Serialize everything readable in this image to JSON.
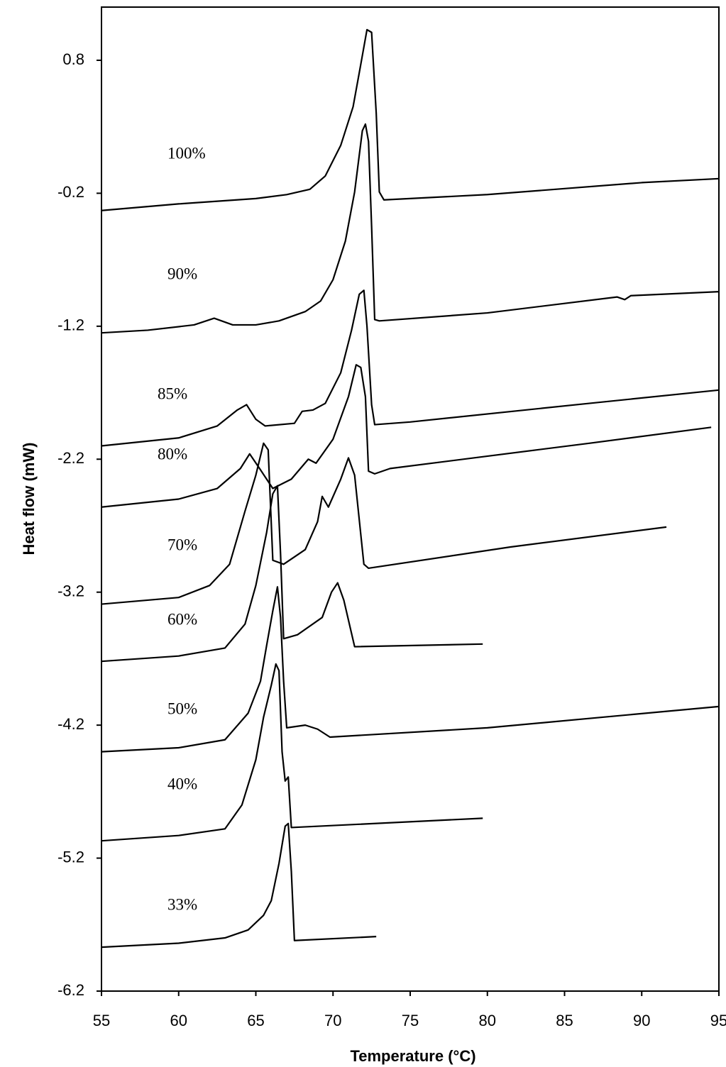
{
  "chart_data": {
    "type": "line",
    "xlabel": "Temperature (°C)",
    "ylabel": "Heat flow (mW)",
    "xlim": [
      55,
      95
    ],
    "xticks": [
      55,
      60,
      65,
      70,
      75,
      80,
      85,
      90,
      95
    ],
    "ylim": [
      -6.2,
      1.2
    ],
    "yticks": [
      0.8,
      -0.2,
      -1.2,
      -2.2,
      -3.2,
      -4.2,
      -5.2,
      -6.2
    ],
    "grid": false,
    "series": [
      {
        "name": "100%",
        "color": "#000000",
        "x": [
          55,
          60,
          65,
          67,
          68.5,
          69.5,
          70.5,
          71.3,
          71.8,
          72.2,
          72.5,
          72.8,
          73.0,
          73.3,
          80,
          90,
          95
        ],
        "values": [
          -0.33,
          -0.28,
          -0.24,
          -0.21,
          -0.17,
          -0.07,
          0.16,
          0.45,
          0.77,
          1.03,
          1.01,
          0.4,
          -0.19,
          -0.25,
          -0.21,
          -0.12,
          -0.09
        ]
      },
      {
        "name": "90%",
        "color": "#000000",
        "x": [
          55,
          58,
          61,
          62.3,
          63.5,
          65,
          66.5,
          68.2,
          69.2,
          70,
          70.8,
          71.4,
          71.9,
          72.1,
          72.3,
          72.5,
          72.7,
          73,
          80,
          88.4,
          88.9,
          89.3,
          95
        ],
        "values": [
          -1.25,
          -1.23,
          -1.19,
          -1.14,
          -1.19,
          -1.19,
          -1.16,
          -1.09,
          -1.01,
          -0.85,
          -0.56,
          -0.19,
          0.27,
          0.32,
          0.19,
          -0.45,
          -1.15,
          -1.16,
          -1.1,
          -0.98,
          -1.0,
          -0.97,
          -0.94
        ]
      },
      {
        "name": "85%",
        "color": "#000000",
        "x": [
          55,
          60,
          62.5,
          63.8,
          64.4,
          65,
          65.6,
          67.5,
          68,
          68.7,
          69.5,
          70.5,
          71.2,
          71.7,
          72.0,
          72.2,
          72.5,
          72.7,
          75,
          86.6,
          95
        ],
        "values": [
          -2.1,
          -2.04,
          -1.95,
          -1.83,
          -1.79,
          -1.9,
          -1.95,
          -1.93,
          -1.84,
          -1.83,
          -1.78,
          -1.55,
          -1.23,
          -0.96,
          -0.93,
          -1.2,
          -1.79,
          -1.94,
          -1.92,
          -1.78,
          -1.68
        ]
      },
      {
        "name": "80%",
        "color": "#000000",
        "x": [
          55,
          60,
          62.5,
          64,
          64.6,
          65.3,
          66.1,
          67.3,
          68.4,
          68.9,
          70,
          71,
          71.5,
          71.8,
          72.1,
          72.3,
          72.7,
          73.7,
          86.6,
          94.5
        ],
        "values": [
          -2.56,
          -2.5,
          -2.42,
          -2.27,
          -2.16,
          -2.28,
          -2.42,
          -2.35,
          -2.2,
          -2.23,
          -2.05,
          -1.73,
          -1.49,
          -1.51,
          -1.73,
          -2.29,
          -2.31,
          -2.27,
          -2.08,
          -1.96
        ]
      },
      {
        "name": "70%",
        "color": "#000000",
        "x": [
          55,
          60,
          62,
          63.3,
          64.3,
          65,
          65.5,
          65.8,
          66.1,
          66.8,
          68.2,
          69,
          69.3,
          69.7,
          70.5,
          71,
          71.4,
          72,
          72.3,
          81.5,
          91.6
        ],
        "values": [
          -3.29,
          -3.24,
          -3.15,
          -2.99,
          -2.59,
          -2.32,
          -2.08,
          -2.13,
          -2.96,
          -2.99,
          -2.88,
          -2.67,
          -2.48,
          -2.56,
          -2.35,
          -2.19,
          -2.32,
          -2.99,
          -3.02,
          -2.86,
          -2.71
        ]
      },
      {
        "name": "60%",
        "color": "#000000",
        "x": [
          55,
          60,
          63,
          64.3,
          65,
          65.7,
          66.1,
          66.4,
          66.6,
          66.8,
          67.7,
          69.3,
          69.9,
          70.3,
          70.7,
          71.4,
          79.7
        ],
        "values": [
          -3.72,
          -3.68,
          -3.62,
          -3.44,
          -3.15,
          -2.75,
          -2.46,
          -2.4,
          -2.91,
          -3.55,
          -3.52,
          -3.39,
          -3.2,
          -3.13,
          -3.26,
          -3.61,
          -3.59
        ]
      },
      {
        "name": "50%",
        "color": "#000000",
        "x": [
          55,
          60,
          63,
          64.5,
          65.3,
          65.7,
          66.1,
          66.4,
          66.6,
          66.8,
          67,
          68.2,
          69,
          69.8,
          80,
          95
        ],
        "values": [
          -4.4,
          -4.37,
          -4.31,
          -4.11,
          -3.87,
          -3.6,
          -3.34,
          -3.16,
          -3.39,
          -3.87,
          -4.22,
          -4.2,
          -4.23,
          -4.29,
          -4.22,
          -4.06
        ]
      },
      {
        "name": "40%",
        "color": "#000000",
        "x": [
          55,
          60,
          63,
          64.1,
          65,
          65.5,
          66,
          66.3,
          66.5,
          66.7,
          66.9,
          67.1,
          67.3,
          79.7
        ],
        "values": [
          -5.07,
          -5.03,
          -4.98,
          -4.8,
          -4.46,
          -4.14,
          -3.9,
          -3.74,
          -3.79,
          -4.4,
          -4.62,
          -4.59,
          -4.97,
          -4.9
        ]
      },
      {
        "name": "33%",
        "color": "#000000",
        "x": [
          55,
          60,
          63,
          64.5,
          65.5,
          66,
          66.5,
          66.9,
          67.1,
          67.3,
          67.5,
          72.8
        ],
        "values": [
          -5.87,
          -5.84,
          -5.8,
          -5.74,
          -5.63,
          -5.52,
          -5.24,
          -4.96,
          -4.94,
          -5.3,
          -5.82,
          -5.79
        ]
      }
    ]
  }
}
